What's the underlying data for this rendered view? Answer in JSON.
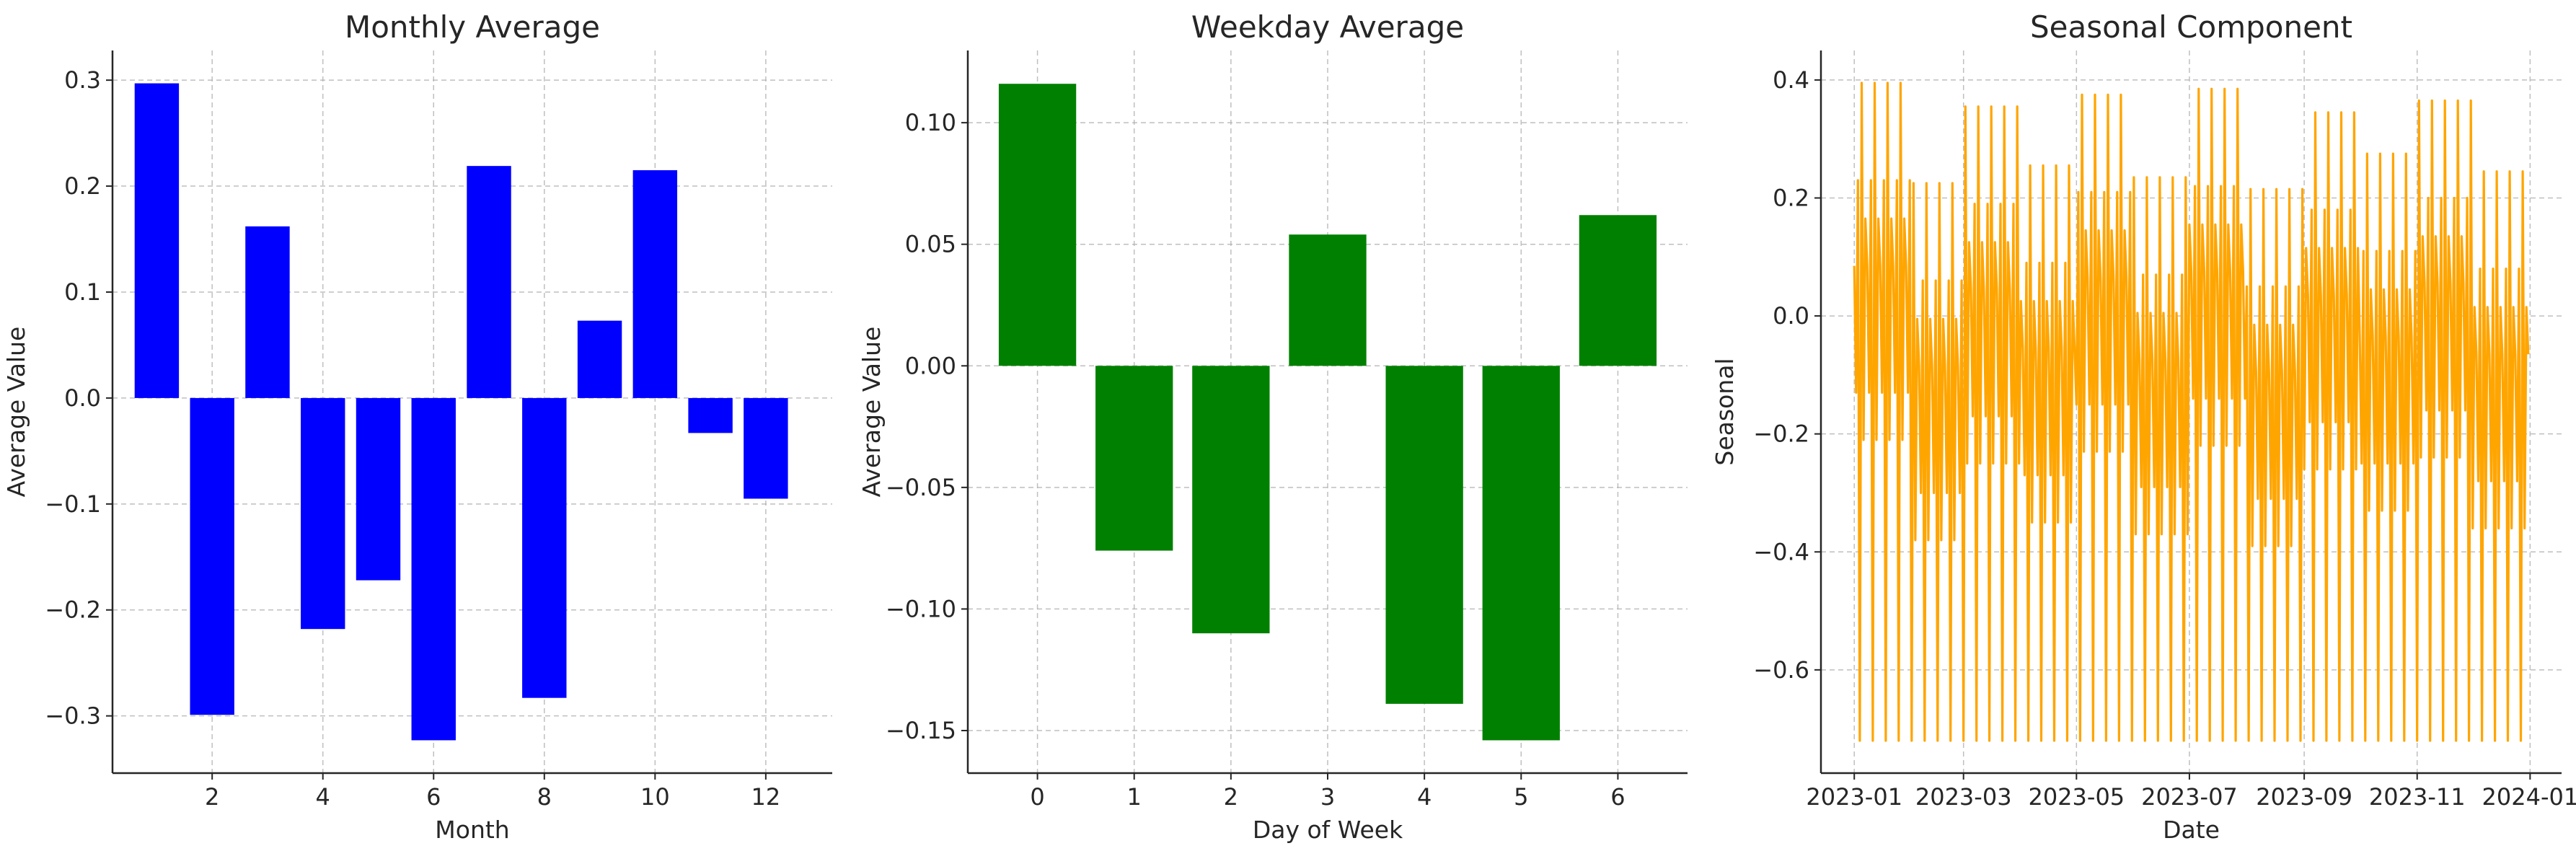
{
  "chart_data": [
    {
      "type": "bar",
      "title": "Monthly Average",
      "xlabel": "Month",
      "ylabel": "Average Value",
      "color": "#0000ff",
      "categories": [
        1,
        2,
        3,
        4,
        5,
        6,
        7,
        8,
        9,
        10,
        11,
        12
      ],
      "values": [
        0.297,
        -0.299,
        0.162,
        -0.218,
        -0.172,
        -0.323,
        0.219,
        -0.283,
        0.073,
        0.215,
        -0.033,
        -0.095
      ],
      "xlim": [
        0.2,
        13.2
      ],
      "ylim": [
        -0.354,
        0.328
      ],
      "xticks": [
        2,
        4,
        6,
        8,
        10,
        12
      ],
      "xtick_labels": [
        "2",
        "4",
        "6",
        "8",
        "10",
        "12"
      ],
      "yticks": [
        0.3,
        0.2,
        0.1,
        0.0,
        -0.1,
        -0.2,
        -0.3
      ],
      "ytick_labels": [
        "0.3",
        "0.2",
        "0.1",
        "0.0",
        "−0.1",
        "−0.2",
        "−0.3"
      ],
      "grid": true
    },
    {
      "type": "bar",
      "title": "Weekday Average",
      "xlabel": "Day of Week",
      "ylabel": "Average Value",
      "color": "#008000",
      "categories": [
        0,
        1,
        2,
        3,
        4,
        5,
        6
      ],
      "values": [
        0.116,
        -0.076,
        -0.11,
        0.054,
        -0.139,
        -0.154,
        0.062
      ],
      "xlim": [
        -0.72,
        6.72
      ],
      "ylim": [
        -0.1675,
        0.1297
      ],
      "xticks": [
        0,
        1,
        2,
        3,
        4,
        5,
        6
      ],
      "xtick_labels": [
        "0",
        "1",
        "2",
        "3",
        "4",
        "5",
        "6"
      ],
      "yticks": [
        0.1,
        0.05,
        0.0,
        -0.05,
        -0.1,
        -0.15
      ],
      "ytick_labels": [
        "0.10",
        "0.05",
        "0.00",
        "−0.05",
        "−0.10",
        "−0.15"
      ],
      "grid": true
    },
    {
      "type": "line",
      "title": "Seasonal Component",
      "xlabel": "Date",
      "ylabel": "Seasonal",
      "color": "#ffa500",
      "x_start": "2023-01-01",
      "x_end": "2023-12-31",
      "weekly_pattern": [
        -0.035,
        -0.25,
        0.11,
        -0.72,
        0.275,
        -0.33,
        0.045
      ],
      "monthly_offsets": [
        0.12,
        -0.05,
        0.08,
        -0.02,
        0.1,
        -0.04,
        0.11,
        -0.06,
        0.07,
        0.0,
        0.09,
        -0.03
      ],
      "xlim": [
        "2022-12-14",
        "2024-01-18"
      ],
      "ylim": [
        -0.775,
        0.45
      ],
      "xticks": [
        "2023-01-01",
        "2023-03-01",
        "2023-05-01",
        "2023-07-01",
        "2023-09-01",
        "2023-11-01",
        "2024-01-01"
      ],
      "xtick_labels": [
        "2023-01",
        "2023-03",
        "2023-05",
        "2023-07",
        "2023-09",
        "2023-11",
        "2024-01"
      ],
      "yticks": [
        0.4,
        0.2,
        0.0,
        -0.2,
        -0.4,
        -0.6
      ],
      "ytick_labels": [
        "0.4",
        "0.2",
        "0.0",
        "−0.2",
        "−0.4",
        "−0.6"
      ],
      "grid": true
    }
  ]
}
